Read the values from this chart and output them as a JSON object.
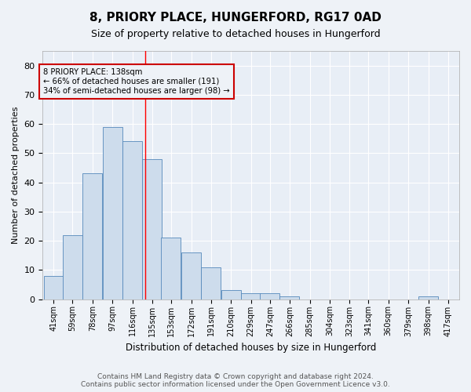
{
  "title": "8, PRIORY PLACE, HUNGERFORD, RG17 0AD",
  "subtitle": "Size of property relative to detached houses in Hungerford",
  "xlabel": "Distribution of detached houses by size in Hungerford",
  "ylabel": "Number of detached properties",
  "bin_labels": [
    "41sqm",
    "59sqm",
    "78sqm",
    "97sqm",
    "116sqm",
    "135sqm",
    "153sqm",
    "172sqm",
    "191sqm",
    "210sqm",
    "229sqm",
    "247sqm",
    "266sqm",
    "285sqm",
    "304sqm",
    "323sqm",
    "341sqm",
    "360sqm",
    "379sqm",
    "398sqm",
    "417sqm"
  ],
  "bar_values": [
    8,
    22,
    43,
    59,
    54,
    48,
    21,
    16,
    11,
    3,
    2,
    2,
    1,
    0,
    0,
    0,
    0,
    0,
    0,
    1,
    0
  ],
  "bar_color": "#cddcec",
  "bar_edge_color": "#5588bb",
  "property_line_x": 138,
  "bin_edges": [
    41,
    59,
    78,
    97,
    116,
    135,
    153,
    172,
    191,
    210,
    229,
    247,
    266,
    285,
    304,
    323,
    341,
    360,
    379,
    398,
    417
  ],
  "bin_width": 19,
  "annotation_line1": "8 PRIORY PLACE: 138sqm",
  "annotation_line2": "← 66% of detached houses are smaller (191)",
  "annotation_line3": "34% of semi-detached houses are larger (98) →",
  "annotation_box_color": "#cc0000",
  "ylim": [
    0,
    85
  ],
  "yticks": [
    0,
    10,
    20,
    30,
    40,
    50,
    60,
    70,
    80
  ],
  "footer_text": "Contains HM Land Registry data © Crown copyright and database right 2024.\nContains public sector information licensed under the Open Government Licence v3.0.",
  "bg_color": "#eef2f7",
  "plot_bg_color": "#e8eef6"
}
